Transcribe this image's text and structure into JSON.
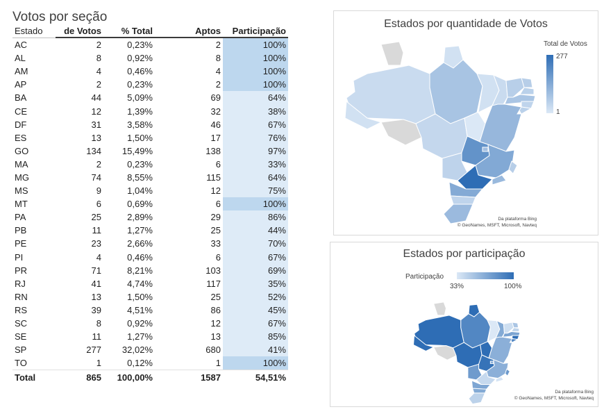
{
  "page_title": "Votos por seção",
  "table": {
    "headers": {
      "estado": "Estado",
      "votos": "de Votos",
      "pct": "% Total",
      "aptos": "Aptos",
      "part": "Participação"
    },
    "rows": [
      {
        "estado": "AC",
        "votos": "2",
        "pct": "0,23%",
        "aptos": "2",
        "part": "100%"
      },
      {
        "estado": "AL",
        "votos": "8",
        "pct": "0,92%",
        "aptos": "8",
        "part": "100%"
      },
      {
        "estado": "AM",
        "votos": "4",
        "pct": "0,46%",
        "aptos": "4",
        "part": "100%"
      },
      {
        "estado": "AP",
        "votos": "2",
        "pct": "0,23%",
        "aptos": "2",
        "part": "100%"
      },
      {
        "estado": "BA",
        "votos": "44",
        "pct": "5,09%",
        "aptos": "69",
        "part": "64%"
      },
      {
        "estado": "CE",
        "votos": "12",
        "pct": "1,39%",
        "aptos": "32",
        "part": "38%"
      },
      {
        "estado": "DF",
        "votos": "31",
        "pct": "3,58%",
        "aptos": "46",
        "part": "67%"
      },
      {
        "estado": "ES",
        "votos": "13",
        "pct": "1,50%",
        "aptos": "17",
        "part": "76%"
      },
      {
        "estado": "GO",
        "votos": "134",
        "pct": "15,49%",
        "aptos": "138",
        "part": "97%"
      },
      {
        "estado": "MA",
        "votos": "2",
        "pct": "0,23%",
        "aptos": "6",
        "part": "33%"
      },
      {
        "estado": "MG",
        "votos": "74",
        "pct": "8,55%",
        "aptos": "115",
        "part": "64%"
      },
      {
        "estado": "MS",
        "votos": "9",
        "pct": "1,04%",
        "aptos": "12",
        "part": "75%"
      },
      {
        "estado": "MT",
        "votos": "6",
        "pct": "0,69%",
        "aptos": "6",
        "part": "100%"
      },
      {
        "estado": "PA",
        "votos": "25",
        "pct": "2,89%",
        "aptos": "29",
        "part": "86%"
      },
      {
        "estado": "PB",
        "votos": "11",
        "pct": "1,27%",
        "aptos": "25",
        "part": "44%"
      },
      {
        "estado": "PE",
        "votos": "23",
        "pct": "2,66%",
        "aptos": "33",
        "part": "70%"
      },
      {
        "estado": "PI",
        "votos": "4",
        "pct": "0,46%",
        "aptos": "6",
        "part": "67%"
      },
      {
        "estado": "PR",
        "votos": "71",
        "pct": "8,21%",
        "aptos": "103",
        "part": "69%"
      },
      {
        "estado": "RJ",
        "votos": "41",
        "pct": "4,74%",
        "aptos": "117",
        "part": "35%"
      },
      {
        "estado": "RN",
        "votos": "13",
        "pct": "1,50%",
        "aptos": "25",
        "part": "52%"
      },
      {
        "estado": "RS",
        "votos": "39",
        "pct": "4,51%",
        "aptos": "86",
        "part": "45%"
      },
      {
        "estado": "SC",
        "votos": "8",
        "pct": "0,92%",
        "aptos": "12",
        "part": "67%"
      },
      {
        "estado": "SE",
        "votos": "11",
        "pct": "1,27%",
        "aptos": "13",
        "part": "85%"
      },
      {
        "estado": "SP",
        "votos": "277",
        "pct": "32,02%",
        "aptos": "680",
        "part": "41%"
      },
      {
        "estado": "TO",
        "votos": "1",
        "pct": "0,12%",
        "aptos": "1",
        "part": "100%"
      }
    ],
    "total": {
      "label": "Total",
      "votos": "865",
      "pct": "100,00%",
      "aptos": "1587",
      "part": "54,51%"
    }
  },
  "chart_data": [
    {
      "type": "map",
      "title": "Estados por quantidade de Votos",
      "legend_title": "Total de Votos",
      "legend_max": "277",
      "legend_min": "1",
      "attribution_1": "Da plataforma Bing",
      "attribution_2": "© GeoNames, MSFT, Microsoft, Navteq",
      "colors": {
        "low": "#dbe8f6",
        "high": "#2e6db5",
        "none": "#d9d9d9"
      },
      "categories": [
        "AC",
        "AL",
        "AM",
        "AP",
        "BA",
        "CE",
        "DF",
        "ES",
        "GO",
        "MA",
        "MG",
        "MS",
        "MT",
        "PA",
        "PB",
        "PE",
        "PI",
        "PR",
        "RJ",
        "RN",
        "RS",
        "SC",
        "SE",
        "SP",
        "TO"
      ],
      "values": [
        2,
        8,
        4,
        2,
        44,
        12,
        31,
        13,
        134,
        2,
        74,
        9,
        6,
        25,
        11,
        23,
        4,
        71,
        41,
        13,
        39,
        8,
        11,
        277,
        1
      ]
    },
    {
      "type": "map",
      "title": "Estados por participação",
      "legend_title": "Participação",
      "legend_min": "33%",
      "legend_max": "100%",
      "attribution_1": "Da plataforma Bing",
      "attribution_2": "© GeoNames, MSFT, Microsoft, Navteq",
      "colors": {
        "low": "#dbe8f6",
        "high": "#2e6db5",
        "none": "#d9d9d9"
      },
      "categories": [
        "AC",
        "AL",
        "AM",
        "AP",
        "BA",
        "CE",
        "DF",
        "ES",
        "GO",
        "MA",
        "MG",
        "MS",
        "MT",
        "PA",
        "PB",
        "PE",
        "PI",
        "PR",
        "RJ",
        "RN",
        "RS",
        "SC",
        "SE",
        "SP",
        "TO"
      ],
      "values": [
        100,
        100,
        100,
        100,
        64,
        38,
        67,
        76,
        97,
        33,
        64,
        75,
        100,
        86,
        44,
        70,
        67,
        69,
        35,
        52,
        45,
        67,
        85,
        41,
        100
      ]
    }
  ]
}
